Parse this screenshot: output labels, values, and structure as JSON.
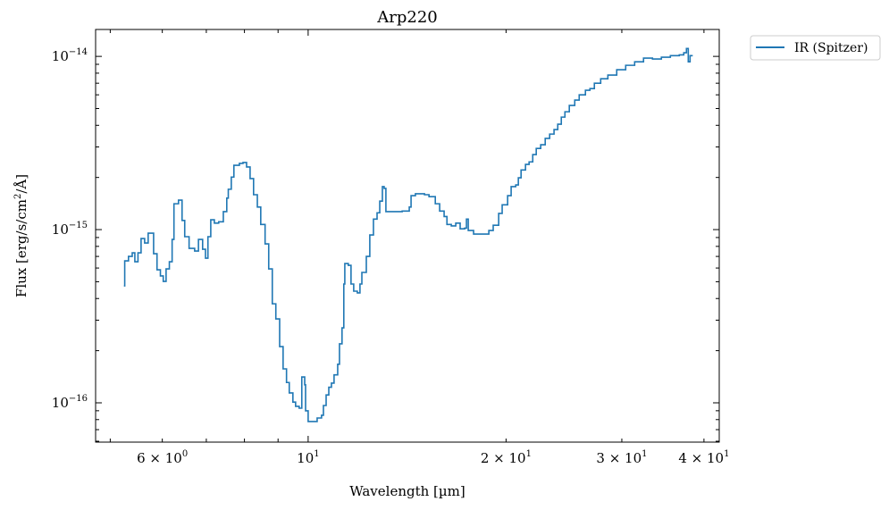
{
  "chart_data": {
    "type": "line",
    "drawstyle": "steps",
    "title": "Arp220",
    "xlabel": "Wavelength [µm]",
    "ylabel": "Flux [erg/s/cm²/Å]",
    "ylabel_parts": {
      "pre": "Flux [erg/s/cm",
      "sup": "2",
      "post": "/Å]"
    },
    "xscale": "log",
    "yscale": "log",
    "xlim": [
      4.75,
      42.2
    ],
    "ylim": [
      5.93e-17,
      1.43e-14
    ],
    "grid": false,
    "legend_placement": "outside-top-right",
    "x_ticks": [
      {
        "value": 6,
        "mant": "6 × 10",
        "exp": "0"
      },
      {
        "value": 10,
        "mant": "10",
        "exp": "1"
      },
      {
        "value": 20,
        "mant": "2 × 10",
        "exp": "1"
      },
      {
        "value": 30,
        "mant": "3 × 10",
        "exp": "1"
      },
      {
        "value": 40,
        "mant": "4 × 10",
        "exp": "1"
      }
    ],
    "y_ticks": [
      {
        "value": 1e-14,
        "mant": "10",
        "exp": "−14"
      },
      {
        "value": 1e-15,
        "mant": "10",
        "exp": "−15"
      },
      {
        "value": 1e-16,
        "mant": "10",
        "exp": "−16"
      }
    ],
    "series": [
      {
        "name": "IR (Spitzer)",
        "color": "#1f77b4",
        "x": [
          5.245,
          5.26,
          5.33,
          5.4,
          5.45,
          5.51,
          5.57,
          5.64,
          5.71,
          5.82,
          5.89,
          5.96,
          6.02,
          6.08,
          6.15,
          6.21,
          6.25,
          6.35,
          6.43,
          6.49,
          6.59,
          6.72,
          6.81,
          6.91,
          6.98,
          7.04,
          7.11,
          7.2,
          7.31,
          7.43,
          7.52,
          7.56,
          7.64,
          7.71,
          7.86,
          7.96,
          8.06,
          8.16,
          8.26,
          8.37,
          8.47,
          8.6,
          8.71,
          8.82,
          8.93,
          9.05,
          9.16,
          9.27,
          9.36,
          9.48,
          9.57,
          9.69,
          9.78,
          9.88,
          9.91,
          10.0,
          10.16,
          10.32,
          10.48,
          10.55,
          10.65,
          10.75,
          10.85,
          10.95,
          11.09,
          11.16,
          11.26,
          11.33,
          11.37,
          11.51,
          11.62,
          11.73,
          11.88,
          11.99,
          12.07,
          12.26,
          12.41,
          12.57,
          12.73,
          12.85,
          12.97,
          13.05,
          13.13,
          13.47,
          13.9,
          14.25,
          14.34,
          14.56,
          15.03,
          15.27,
          15.61,
          15.85,
          16.1,
          16.26,
          16.51,
          16.77,
          17.03,
          17.3,
          17.41,
          17.52,
          17.85,
          18.42,
          18.83,
          19.12,
          19.49,
          19.73,
          20.11,
          20.36,
          20.69,
          20.88,
          21.08,
          21.41,
          21.68,
          21.96,
          22.23,
          22.58,
          22.94,
          23.3,
          23.66,
          23.97,
          24.27,
          24.58,
          24.96,
          25.44,
          25.84,
          26.41,
          26.83,
          27.25,
          27.86,
          28.57,
          29.47,
          30.41,
          31.38,
          32.37,
          33.4,
          34.46,
          35.56,
          36.69,
          37.27,
          37.62,
          37.86,
          38.1
        ],
        "y": [
          4.73e-16,
          6.6e-16,
          7e-16,
          7.34e-16,
          6.52e-16,
          7.34e-16,
          8.88e-16,
          8.37e-16,
          9.54e-16,
          7.26e-16,
          5.86e-16,
          5.4e-16,
          5.02e-16,
          5.93e-16,
          6.52e-16,
          8.78e-16,
          1.41e-15,
          1.48e-15,
          1.13e-15,
          9.1e-16,
          7.79e-16,
          7.52e-16,
          8.78e-16,
          7.7e-16,
          6.84e-16,
          9.1e-16,
          1.14e-15,
          1.09e-15,
          1.11e-15,
          1.27e-15,
          1.52e-15,
          1.71e-15,
          2.01e-15,
          2.35e-15,
          2.41e-15,
          2.44e-15,
          2.3e-15,
          1.97e-15,
          1.59e-15,
          1.35e-15,
          1.07e-15,
          8.27e-16,
          5.93e-16,
          3.73e-16,
          3.05e-16,
          2.11e-16,
          1.57e-16,
          1.31e-16,
          1.14e-16,
          1.01e-16,
          9.54e-17,
          9.31e-17,
          1.41e-16,
          1.27e-16,
          8.99e-17,
          7.8e-17,
          7.8e-17,
          8.17e-17,
          8.47e-17,
          9.65e-17,
          1.11e-16,
          1.23e-16,
          1.3e-16,
          1.45e-16,
          1.67e-16,
          2.19e-16,
          2.71e-16,
          4.85e-16,
          6.37e-16,
          6.22e-16,
          4.85e-16,
          4.41e-16,
          4.31e-16,
          4.85e-16,
          5.66e-16,
          7e-16,
          9.31e-16,
          1.15e-15,
          1.25e-15,
          1.46e-15,
          1.77e-15,
          1.73e-15,
          1.27e-15,
          1.27e-15,
          1.28e-15,
          1.35e-15,
          1.57e-15,
          1.61e-15,
          1.59e-15,
          1.55e-15,
          1.41e-15,
          1.28e-15,
          1.19e-15,
          1.07e-15,
          1.05e-15,
          1.09e-15,
          1.01e-15,
          1.02e-15,
          1.15e-15,
          9.88e-16,
          9.42e-16,
          9.42e-16,
          9.88e-16,
          1.06e-15,
          1.24e-15,
          1.39e-15,
          1.57e-15,
          1.77e-15,
          1.81e-15,
          1.99e-15,
          2.21e-15,
          2.38e-15,
          2.46e-15,
          2.71e-15,
          2.94e-15,
          3.09e-15,
          3.36e-15,
          3.56e-15,
          3.78e-15,
          4.06e-15,
          4.46e-15,
          4.79e-15,
          5.21e-15,
          5.59e-15,
          6e-15,
          6.37e-15,
          6.52e-15,
          7e-15,
          7.43e-15,
          7.8e-15,
          8.37e-15,
          8.88e-15,
          9.31e-15,
          9.77e-15,
          9.66e-15,
          9.89e-15,
          1.01e-14,
          1.02e-14,
          1.05e-14,
          1.11e-14,
          9.31e-15,
          1.01e-14
        ]
      }
    ]
  }
}
